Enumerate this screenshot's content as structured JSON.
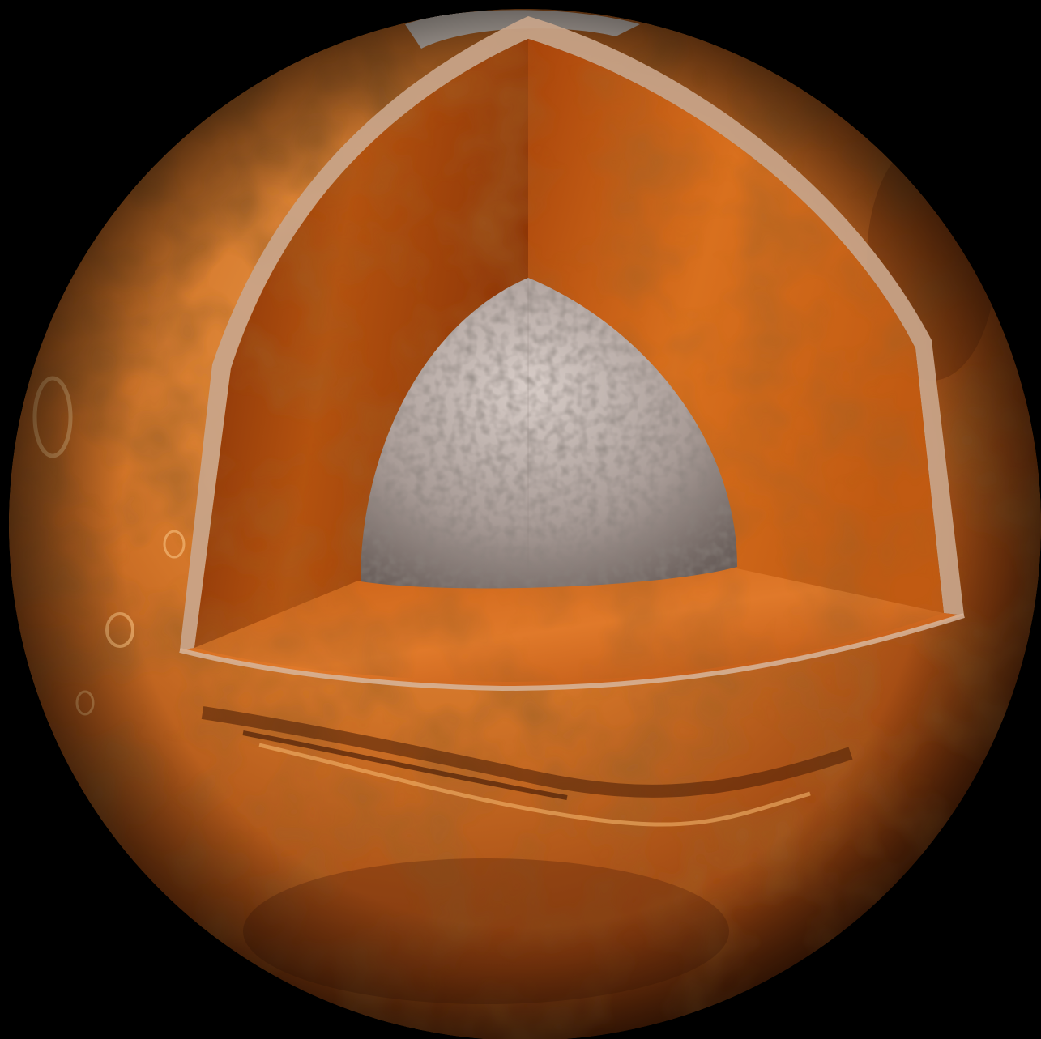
{
  "scene": {
    "subject": "planet cutaway",
    "colors": {
      "background": "#000000",
      "surface_light": "#e6913f",
      "surface_mid": "#c2641f",
      "surface_dark": "#6e2a08",
      "mantle_light": "#e07a25",
      "mantle_dark": "#8a2f06",
      "crust_edge": "#c9a58a",
      "core_light": "#c9bcb6",
      "core_dark": "#6f6460",
      "polar_cap": "#f4f1ee"
    }
  }
}
